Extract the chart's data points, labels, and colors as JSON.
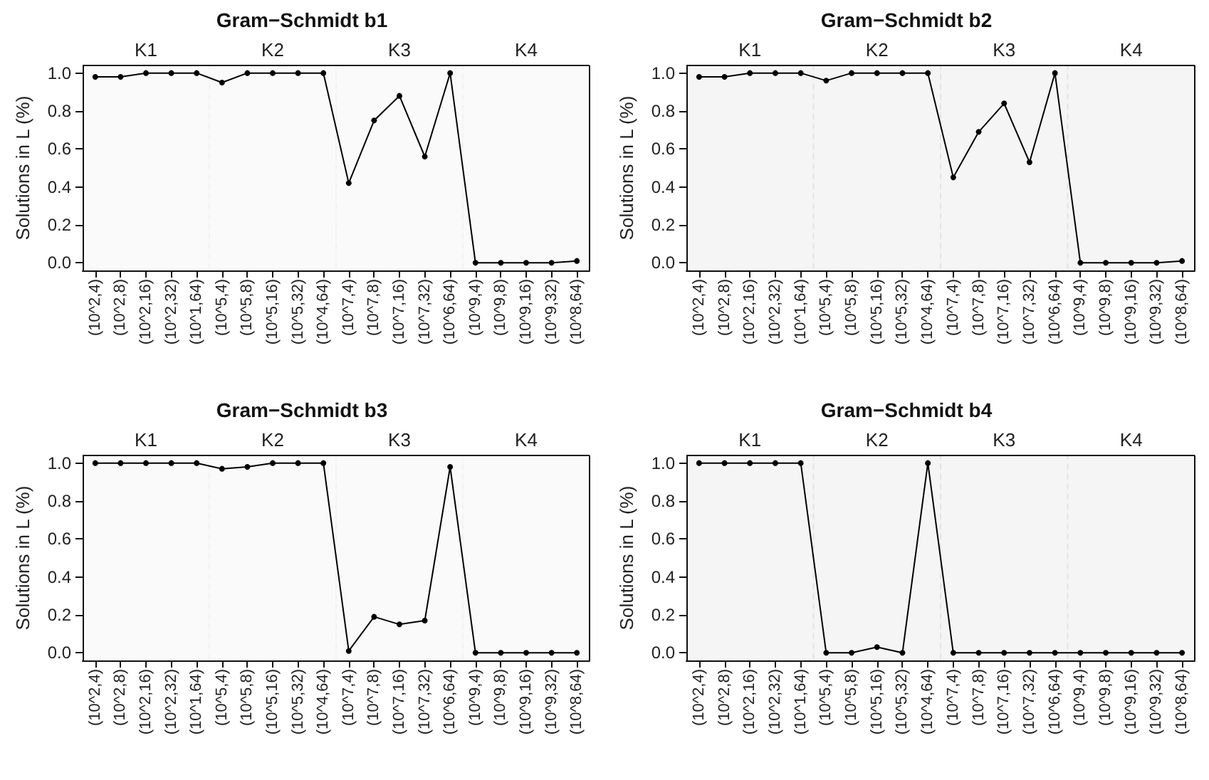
{
  "chart_data": [
    {
      "type": "line",
      "title": "Gram−Schmidt b1",
      "ylabel": "Solutions in L (%)",
      "categories": [
        "(10^2,4)",
        "(10^2,8)",
        "(10^2,16)",
        "(10^2,32)",
        "(10^1,64)",
        "(10^5,4)",
        "(10^5,8)",
        "(10^5,16)",
        "(10^5,32)",
        "(10^4,64)",
        "(10^7,4)",
        "(10^7,8)",
        "(10^7,16)",
        "(10^7,32)",
        "(10^6,64)",
        "(10^9,4)",
        "(10^9,8)",
        "(10^9,16)",
        "(10^9,32)",
        "(10^8,64)"
      ],
      "series": [
        {
          "color": "#000000",
          "values": [
            0.98,
            0.98,
            1,
            1,
            1,
            0.95,
            1,
            1,
            1,
            1,
            0.42,
            0.75,
            0.88,
            0.56,
            1,
            0,
            0,
            0,
            0,
            0.01
          ]
        }
      ],
      "ylim": [
        -0.04,
        1.04
      ],
      "yticks": [
        {
          "value": 0,
          "label": "0.0"
        },
        {
          "value": 0.2,
          "label": "0.2"
        },
        {
          "value": 0.4,
          "label": "0.4"
        },
        {
          "value": 0.6,
          "label": "0.6"
        },
        {
          "value": 0.8,
          "label": "0.8"
        },
        {
          "value": 1,
          "label": "1.0"
        }
      ],
      "bands": [
        {
          "axis": "x",
          "from": "(10^2,4)",
          "to": "(10^1,64)",
          "label": "K1",
          "color": "#777777"
        },
        {
          "axis": "x",
          "from": "(10^5,4)",
          "to": "(10^4,64)",
          "label": "K2",
          "color": "#777777"
        },
        {
          "axis": "x",
          "from": "(10^7,4)",
          "to": "(10^6,64)",
          "label": "K3",
          "color": "#777777"
        },
        {
          "axis": "x",
          "from": "(10^9,4)",
          "to": "(10^8,64)",
          "label": "K4",
          "color": "#777777"
        }
      ],
      "grid": false,
      "marker": "circle",
      "line_style": "solid"
    },
    {
      "type": "line",
      "title": "Gram−Schmidt b2",
      "ylabel": "Solutions in L (%)",
      "categories": [
        "(10^2,4)",
        "(10^2,8)",
        "(10^2,16)",
        "(10^2,32)",
        "(10^1,64)",
        "(10^5,4)",
        "(10^5,8)",
        "(10^5,16)",
        "(10^5,32)",
        "(10^4,64)",
        "(10^7,4)",
        "(10^7,8)",
        "(10^7,16)",
        "(10^7,32)",
        "(10^6,64)",
        "(10^9,4)",
        "(10^9,8)",
        "(10^9,16)",
        "(10^9,32)",
        "(10^8,64)"
      ],
      "series": [
        {
          "color": "#000000",
          "values": [
            0.98,
            0.98,
            1,
            1,
            1,
            0.96,
            1,
            1,
            1,
            1,
            0.45,
            0.69,
            0.84,
            0.53,
            1,
            0,
            0,
            0,
            0,
            0.01
          ]
        }
      ],
      "ylim": [
        -0.04,
        1.04
      ],
      "yticks": [
        {
          "value": 0,
          "label": "0.0"
        },
        {
          "value": 0.2,
          "label": "0.2"
        },
        {
          "value": 0.4,
          "label": "0.4"
        },
        {
          "value": 0.6,
          "label": "0.6"
        },
        {
          "value": 0.8,
          "label": "0.8"
        },
        {
          "value": 1,
          "label": "1.0"
        }
      ],
      "bands": [
        {
          "axis": "x",
          "from": "(10^2,4)",
          "to": "(10^1,64)",
          "label": "K1",
          "color": "#000000"
        },
        {
          "axis": "x",
          "from": "(10^5,4)",
          "to": "(10^4,64)",
          "label": "K2",
          "color": "#000000"
        },
        {
          "axis": "x",
          "from": "(10^7,4)",
          "to": "(10^6,64)",
          "label": "K3",
          "color": "#000000"
        },
        {
          "axis": "x",
          "from": "(10^9,4)",
          "to": "(10^8,64)",
          "label": "K4",
          "color": "#000000"
        }
      ],
      "grid": false,
      "marker": "circle",
      "line_style": "solid"
    },
    {
      "type": "line",
      "title": "Gram−Schmidt b3",
      "ylabel": "Solutions in L (%)",
      "categories": [
        "(10^2,4)",
        "(10^2,8)",
        "(10^2,16)",
        "(10^2,32)",
        "(10^1,64)",
        "(10^5,4)",
        "(10^5,8)",
        "(10^5,16)",
        "(10^5,32)",
        "(10^4,64)",
        "(10^7,4)",
        "(10^7,8)",
        "(10^7,16)",
        "(10^7,32)",
        "(10^6,64)",
        "(10^9,4)",
        "(10^9,8)",
        "(10^9,16)",
        "(10^9,32)",
        "(10^8,64)"
      ],
      "series": [
        {
          "color": "#000000",
          "values": [
            1,
            1,
            1,
            1,
            1,
            0.97,
            0.98,
            1,
            1,
            1,
            0.01,
            0.19,
            0.15,
            0.17,
            0.98,
            0,
            0,
            0,
            0,
            0
          ]
        }
      ],
      "ylim": [
        -0.04,
        1.04
      ],
      "yticks": [
        {
          "value": 0,
          "label": "0.0"
        },
        {
          "value": 0.2,
          "label": "0.2"
        },
        {
          "value": 0.4,
          "label": "0.4"
        },
        {
          "value": 0.6,
          "label": "0.6"
        },
        {
          "value": 0.8,
          "label": "0.8"
        },
        {
          "value": 1,
          "label": "1.0"
        }
      ],
      "bands": [
        {
          "axis": "x",
          "from": "(10^2,4)",
          "to": "(10^1,64)",
          "label": "K1",
          "color": "#777777"
        },
        {
          "axis": "x",
          "from": "(10^5,4)",
          "to": "(10^4,64)",
          "label": "K2",
          "color": "#777777"
        },
        {
          "axis": "x",
          "from": "(10^7,4)",
          "to": "(10^6,64)",
          "label": "K3",
          "color": "#777777"
        },
        {
          "axis": "x",
          "from": "(10^9,4)",
          "to": "(10^8,64)",
          "label": "K4",
          "color": "#777777"
        }
      ],
      "grid": false,
      "marker": "circle",
      "line_style": "solid"
    },
    {
      "type": "line",
      "title": "Gram−Schmidt b4",
      "ylabel": "Solutions in L (%)",
      "categories": [
        "(10^2,4)",
        "(10^2,8)",
        "(10^2,16)",
        "(10^2,32)",
        "(10^1,64)",
        "(10^5,4)",
        "(10^5,8)",
        "(10^5,16)",
        "(10^5,32)",
        "(10^4,64)",
        "(10^7,4)",
        "(10^7,8)",
        "(10^7,16)",
        "(10^7,32)",
        "(10^6,64)",
        "(10^9,4)",
        "(10^9,8)",
        "(10^9,16)",
        "(10^9,32)",
        "(10^8,64)"
      ],
      "series": [
        {
          "color": "#000000",
          "values": [
            1,
            1,
            1,
            1,
            1,
            0,
            0,
            0.03,
            0,
            1,
            0,
            0,
            0,
            0,
            0,
            0,
            0,
            0,
            0,
            0
          ]
        }
      ],
      "ylim": [
        -0.04,
        1.04
      ],
      "yticks": [
        {
          "value": 0,
          "label": "0.0"
        },
        {
          "value": 0.2,
          "label": "0.2"
        },
        {
          "value": 0.4,
          "label": "0.4"
        },
        {
          "value": 0.6,
          "label": "0.6"
        },
        {
          "value": 0.8,
          "label": "0.8"
        },
        {
          "value": 1,
          "label": "1.0"
        }
      ],
      "bands": [
        {
          "axis": "x",
          "from": "(10^2,4)",
          "to": "(10^1,64)",
          "label": "K1",
          "color": "#000000"
        },
        {
          "axis": "x",
          "from": "(10^5,4)",
          "to": "(10^4,64)",
          "label": "K2",
          "color": "#000000"
        },
        {
          "axis": "x",
          "from": "(10^7,4)",
          "to": "(10^6,64)",
          "label": "K3",
          "color": "#000000"
        },
        {
          "axis": "x",
          "from": "(10^9,4)",
          "to": "(10^8,64)",
          "label": "K4",
          "color": "#000000"
        }
      ],
      "grid": false,
      "marker": "circle",
      "line_style": "solid"
    }
  ]
}
